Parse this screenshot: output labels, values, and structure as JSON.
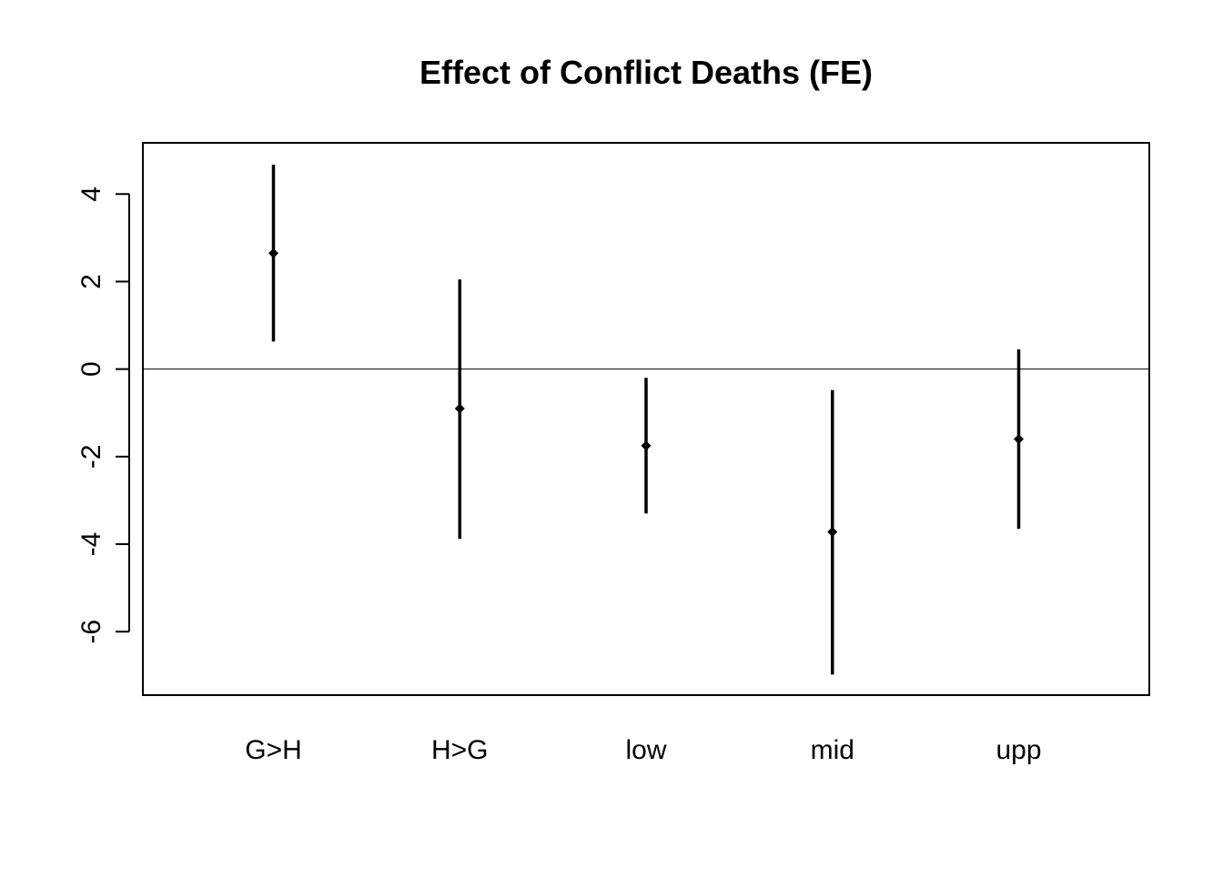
{
  "chart_data": {
    "type": "scatter",
    "title": "Effect of Conflict Deaths (FE)",
    "xlabel": "",
    "ylabel": "",
    "categories": [
      "G>H",
      "H>G",
      "low",
      "mid",
      "upp"
    ],
    "points": [
      {
        "category": "G>H",
        "estimate": 2.65,
        "lower": 0.63,
        "upper": 4.67
      },
      {
        "category": "H>G",
        "estimate": -0.9,
        "lower": -3.88,
        "upper": 2.05
      },
      {
        "category": "low",
        "estimate": -1.75,
        "lower": -3.3,
        "upper": -0.2
      },
      {
        "category": "mid",
        "estimate": -3.72,
        "lower": -6.98,
        "upper": -0.48
      },
      {
        "category": "upp",
        "estimate": -1.6,
        "lower": -3.65,
        "upper": 0.45
      }
    ],
    "ylim": [
      -7.45,
      5.17
    ],
    "yticks": [
      -6,
      -4,
      -2,
      0,
      2,
      4
    ],
    "ytick_labels": [
      "-6",
      "-4",
      "-2",
      "0",
      "2",
      "4"
    ],
    "reference_line": 0,
    "grid": false,
    "legend": "none",
    "colors": {
      "marks": "#000000",
      "axes": "#000000",
      "background": "#ffffff"
    }
  }
}
